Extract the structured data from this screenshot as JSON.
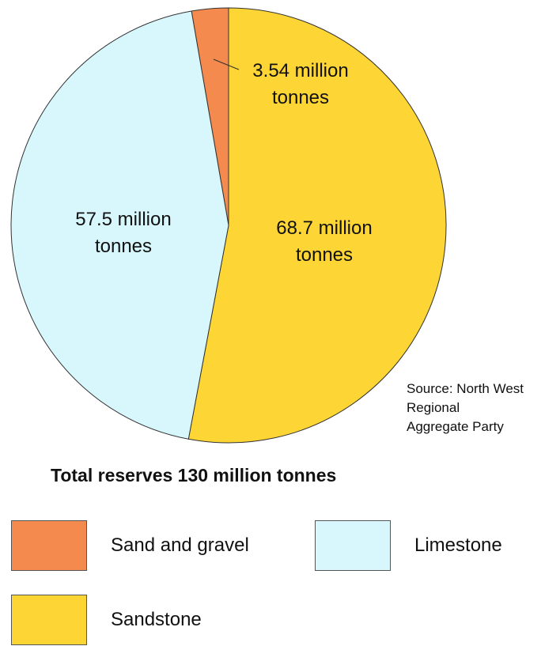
{
  "chart_data": {
    "type": "pie",
    "title": "Total reserves 130 million tonnes",
    "slices": [
      {
        "name": "Sand and gravel",
        "value": 3.54,
        "label_lines": [
          "3.54 million",
          "tonnes"
        ],
        "color": "#F58A4E"
      },
      {
        "name": "Sandstone",
        "value": 68.7,
        "label_lines": [
          "68.7 million",
          "tonnes"
        ],
        "color": "#FDD534"
      },
      {
        "name": "Limestone",
        "value": 57.5,
        "label_lines": [
          "57.5 million",
          "tonnes"
        ],
        "color": "#D7F7FC"
      }
    ],
    "unit": "million tonnes",
    "legend_placement": "bottom"
  },
  "source_lines": [
    "Source: North West",
    "Regional",
    "Aggregate Party"
  ],
  "legend": [
    {
      "label": "Sand and gravel",
      "color": "#F58A4E"
    },
    {
      "label": "Limestone",
      "color": "#D7F7FC"
    },
    {
      "label": "Sandstone",
      "color": "#FDD534"
    }
  ]
}
